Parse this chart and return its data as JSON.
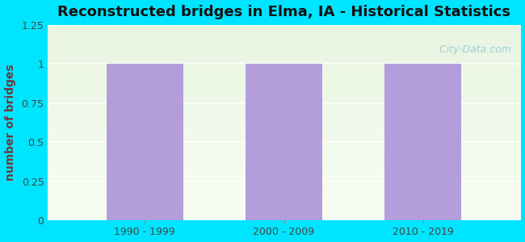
{
  "title": "Reconstructed bridges in Elma, IA - Historical Statistics",
  "categories": [
    "1990 - 1999",
    "2000 - 2009",
    "2010 - 2019"
  ],
  "values": [
    1,
    1,
    1
  ],
  "bar_color": "#b39ddb",
  "ylabel": "number of bridges",
  "ylim": [
    0,
    1.25
  ],
  "yticks": [
    0,
    0.25,
    0.5,
    0.75,
    1.0,
    1.25
  ],
  "ytick_labels": [
    "0",
    "0.25",
    "0.5",
    "0.75",
    "1",
    "1.25"
  ],
  "title_fontsize": 13,
  "ylabel_fontsize": 10,
  "tick_fontsize": 9,
  "background_outer": "#00e5ff",
  "watermark": "  City-Data.com",
  "bar_width": 0.55
}
